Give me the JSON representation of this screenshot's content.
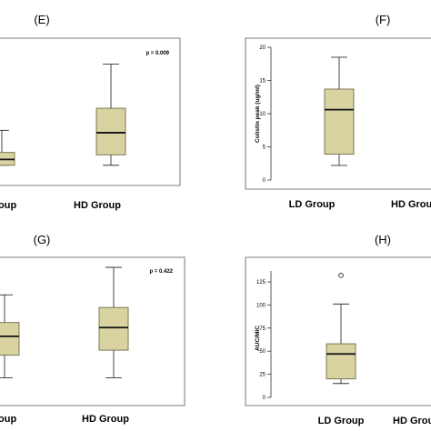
{
  "colors": {
    "box_fill": "#d9d3a2",
    "box_stroke": "#6f6a45",
    "frame": "#555555"
  },
  "chart_data": [
    {
      "panel": "(E)",
      "type": "box",
      "categories": [
        "LD Group",
        "HD Group"
      ],
      "visible_category_text": [
        "oup",
        "HD Group"
      ],
      "annotation": "p = 0.009",
      "boxes": [
        {
          "category": "LD Group",
          "rel": {
            "min": 0.08,
            "q1": 0.08,
            "median": 0.13,
            "q3": 0.19,
            "max": 0.38
          }
        },
        {
          "category": "HD Group",
          "rel": {
            "min": 0.08,
            "q1": 0.17,
            "median": 0.36,
            "q3": 0.57,
            "max": 0.95
          }
        }
      ]
    },
    {
      "panel": "(F)",
      "type": "box",
      "categories": [
        "LD Group",
        "HD Group"
      ],
      "ylabel": "Colistin peak (ug/ml)",
      "yticks": [
        0,
        5,
        10,
        15,
        20
      ],
      "ylim": [
        0,
        20
      ],
      "boxes": [
        {
          "category": "LD Group",
          "min": 2.2,
          "q1": 3.9,
          "median": 10.6,
          "q3": 13.7,
          "max": 18.5
        }
      ]
    },
    {
      "panel": "(G)",
      "type": "box",
      "categories": [
        "LD Group",
        "HD Group"
      ],
      "visible_category_text": [
        "oup",
        "HD Group"
      ],
      "annotation": "p = 0.422",
      "boxes": [
        {
          "category": "LD Group",
          "rel": {
            "min": 0.12,
            "q1": 0.3,
            "median": 0.45,
            "q3": 0.56,
            "max": 0.78
          }
        },
        {
          "category": "HD Group",
          "rel": {
            "min": 0.12,
            "q1": 0.34,
            "median": 0.52,
            "q3": 0.68,
            "max": 1.0
          }
        }
      ]
    },
    {
      "panel": "(H)",
      "type": "box",
      "categories": [
        "LD Group",
        "HD Group"
      ],
      "ylabel": "AUC/MIC",
      "yticks": [
        0,
        25,
        50,
        75,
        100,
        125
      ],
      "ylim": [
        0,
        125
      ],
      "boxes": [
        {
          "category": "LD Group",
          "min": 15,
          "q1": 20,
          "median": 47,
          "q3": 58,
          "max": 101,
          "outliers": [
            132
          ]
        }
      ]
    }
  ]
}
